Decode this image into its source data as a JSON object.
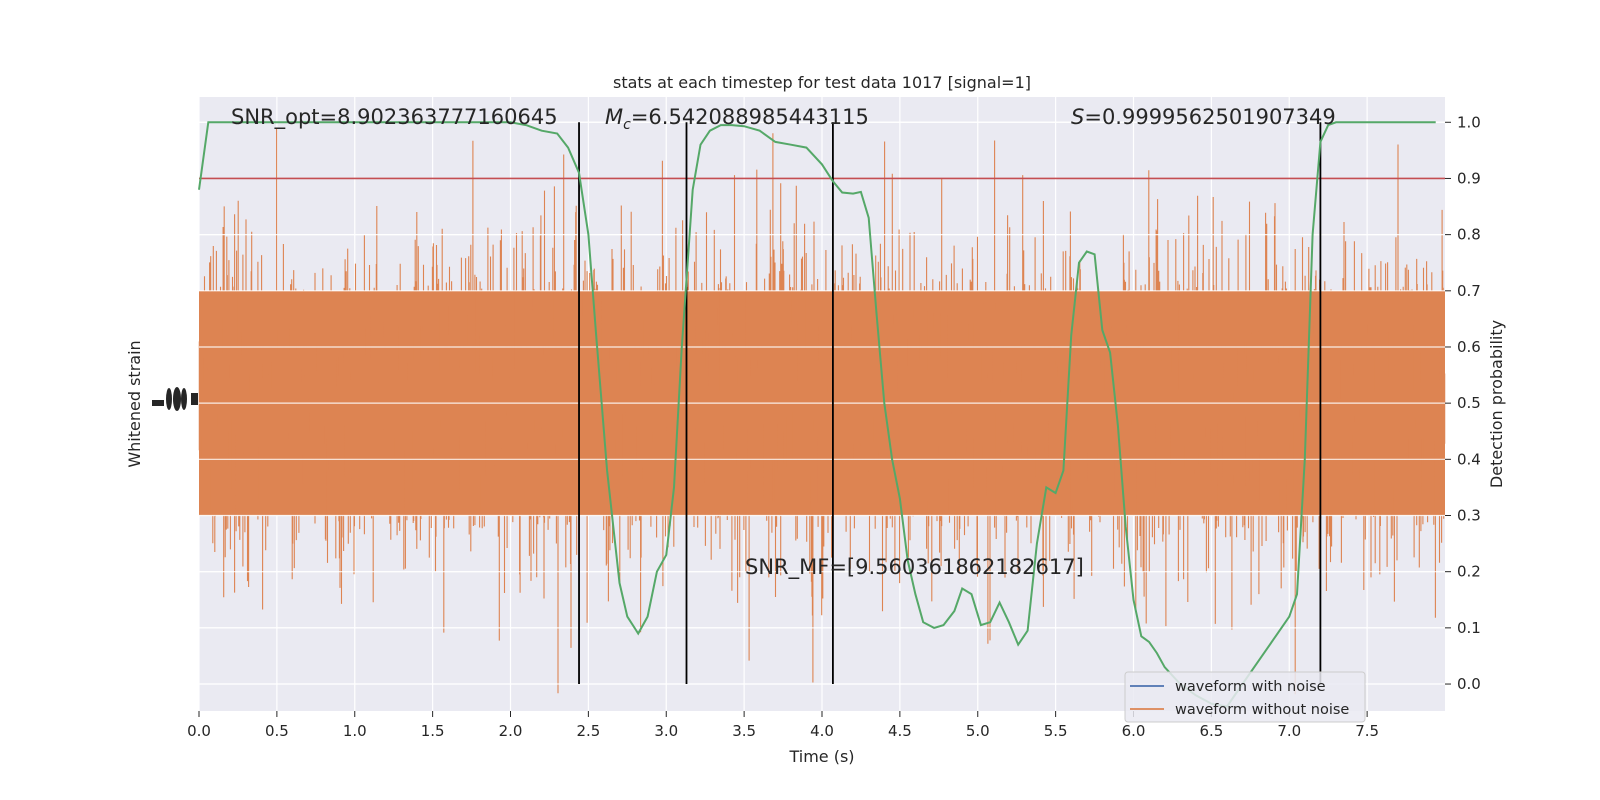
{
  "chart_data": {
    "type": "line",
    "title": "stats at each timestep for test data 1017 [signal=1]",
    "xlabel": "Time (s)",
    "ylabel_left": "Whitened strain",
    "ylabel_right": "Detection probability",
    "xlim": [
      0,
      8
    ],
    "ylim_right": [
      -0.048,
      1.045
    ],
    "x_ticks": [
      0.0,
      0.5,
      1.0,
      1.5,
      2.0,
      2.5,
      3.0,
      3.5,
      4.0,
      4.5,
      5.0,
      5.5,
      6.0,
      6.5,
      7.0,
      7.5
    ],
    "x_tick_labels": [
      "0.0",
      "0.5",
      "1.0",
      "1.5",
      "2.0",
      "2.5",
      "3.0",
      "3.5",
      "4.0",
      "4.5",
      "5.0",
      "5.5",
      "6.0",
      "6.5",
      "7.0",
      "7.5"
    ],
    "y_right_ticks": [
      0.0,
      0.1,
      0.2,
      0.3,
      0.4,
      0.5,
      0.6,
      0.7,
      0.8,
      0.9,
      1.0
    ],
    "y_right_tick_labels": [
      "0.0",
      "0.1",
      "0.2",
      "0.3",
      "0.4",
      "0.5",
      "0.6",
      "0.7",
      "0.8",
      "0.9",
      "1.0"
    ],
    "grid": true,
    "threshold": 0.9,
    "vertical_lines_x": [
      2.44,
      3.13,
      4.07,
      7.2
    ],
    "annotations": {
      "snr_opt": "SNR_opt=8.902363777160645",
      "mc_symbol": "M",
      "mc_subscript": "c",
      "mc_value": "=6.542088985443115",
      "s_symbol": "S",
      "s_value": "=0.9999562501907349",
      "snr_mf": "SNR_MF=[9.560361862182617]"
    },
    "legend": {
      "position": "lower-right",
      "entries": [
        "waveform with noise",
        "waveform without noise"
      ]
    },
    "colors": {
      "background": "#eaeaf2",
      "grid": "#ffffff",
      "waveform_with_noise": "#4c72b0",
      "waveform_without_noise": "#dd8452",
      "detection_probability": "#55a868",
      "threshold": "#c44e52",
      "event_lines": "#000000"
    },
    "series": [
      {
        "name": "detection probability",
        "x": [
          0.0,
          0.06,
          0.14,
          0.3,
          0.6,
          1.0,
          1.5,
          1.9,
          2.0,
          2.1,
          2.2,
          2.3,
          2.37,
          2.44,
          2.5,
          2.55,
          2.62,
          2.7,
          2.75,
          2.82,
          2.88,
          2.94,
          3.0,
          3.05,
          3.1,
          3.13,
          3.17,
          3.22,
          3.28,
          3.35,
          3.42,
          3.5,
          3.6,
          3.7,
          3.8,
          3.9,
          4.0,
          4.07,
          4.13,
          4.2,
          4.25,
          4.3,
          4.35,
          4.4,
          4.45,
          4.5,
          4.55,
          4.6,
          4.65,
          4.72,
          4.78,
          4.85,
          4.9,
          4.96,
          5.02,
          5.08,
          5.14,
          5.2,
          5.26,
          5.32,
          5.38,
          5.44,
          5.5,
          5.55,
          5.6,
          5.65,
          5.7,
          5.75,
          5.8,
          5.85,
          5.9,
          5.95,
          6.0,
          6.05,
          6.1,
          6.15,
          6.2,
          6.3,
          6.4,
          6.5,
          6.6,
          6.7,
          6.8,
          6.9,
          7.0,
          7.05,
          7.1,
          7.15,
          7.2,
          7.25,
          7.3,
          7.35,
          7.4,
          7.5,
          7.7,
          7.85,
          7.94
        ],
        "values": [
          0.88,
          1.0,
          1.0,
          1.0,
          1.0,
          1.0,
          1.0,
          1.0,
          1.0,
          0.995,
          0.985,
          0.98,
          0.955,
          0.91,
          0.8,
          0.62,
          0.38,
          0.18,
          0.12,
          0.09,
          0.12,
          0.2,
          0.23,
          0.35,
          0.6,
          0.72,
          0.88,
          0.96,
          0.985,
          0.995,
          0.995,
          0.993,
          0.985,
          0.965,
          0.96,
          0.955,
          0.925,
          0.895,
          0.875,
          0.873,
          0.876,
          0.83,
          0.66,
          0.5,
          0.4,
          0.33,
          0.22,
          0.16,
          0.11,
          0.1,
          0.105,
          0.13,
          0.17,
          0.16,
          0.105,
          0.11,
          0.145,
          0.11,
          0.07,
          0.095,
          0.25,
          0.35,
          0.34,
          0.38,
          0.62,
          0.75,
          0.77,
          0.765,
          0.63,
          0.59,
          0.46,
          0.28,
          0.15,
          0.085,
          0.075,
          0.055,
          0.03,
          0.0,
          -0.02,
          -0.035,
          -0.04,
          0.0,
          0.04,
          0.08,
          0.12,
          0.16,
          0.4,
          0.8,
          0.965,
          0.995,
          1.0,
          1.0,
          1.0,
          1.0,
          1.0,
          1.0,
          1.0
        ]
      }
    ]
  }
}
